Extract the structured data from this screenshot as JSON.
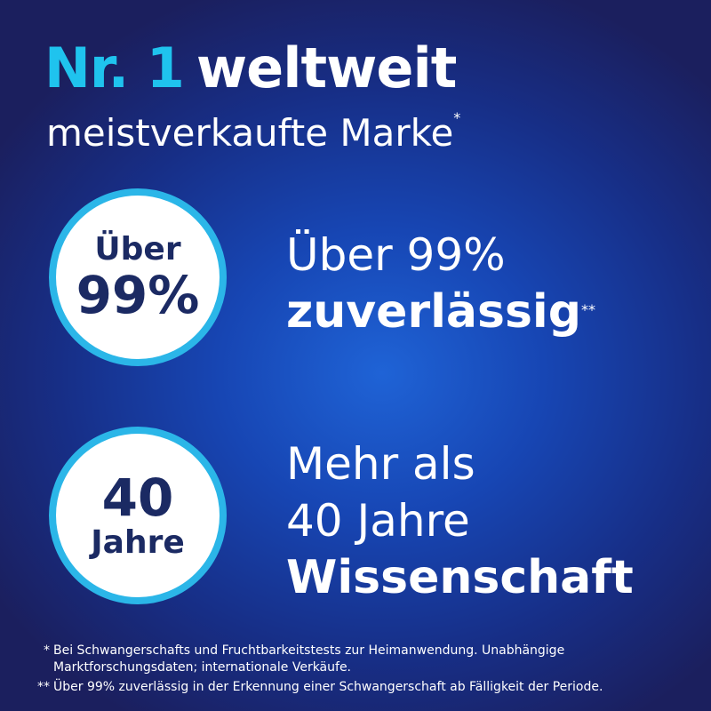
{
  "headline": {
    "highlight": "Nr. 1",
    "text": "weltweit"
  },
  "subline": {
    "text": "meistverkaufte Marke",
    "marker": "*"
  },
  "claims": [
    {
      "badge": [
        "Über",
        "99%"
      ],
      "lines": [
        "Über 99%"
      ],
      "strong": "zuverlässig",
      "marker": "**"
    },
    {
      "badge": [
        "40",
        "Jahre"
      ],
      "lines": [
        "Mehr als",
        "40 Jahre"
      ],
      "strong": "Wissenschaft"
    }
  ],
  "footnotes": [
    {
      "marker": "*",
      "text": "Bei Schwangerschafts und Fruchtbarkeitstests zur Heimanwendung. Unabhängige Marktforschungsdaten; internationale Verkäufe."
    },
    {
      "marker": "**",
      "text": "Über 99% zuverlässig in der Erkennung einer Schwangerschaft ab Fälligkeit der Periode."
    }
  ]
}
